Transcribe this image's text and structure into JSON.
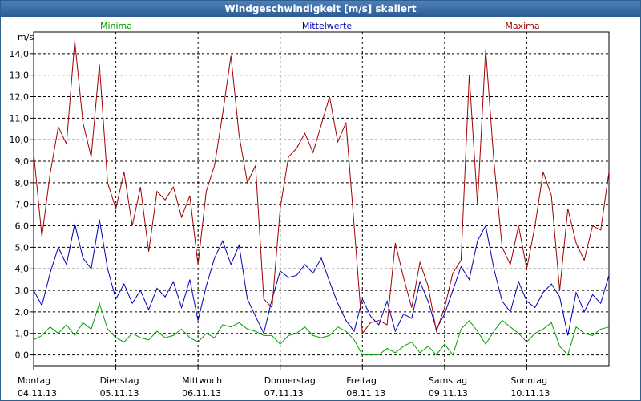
{
  "window": {
    "title": "Windgeschwindigkeit [m/s] skaliert"
  },
  "chart_data": {
    "type": "line",
    "title": "Windgeschwindigkeit [m/s] skaliert",
    "ylabel": "m/s",
    "ylim": [
      -0.5,
      15.0
    ],
    "yticks": [
      0,
      1,
      2,
      3,
      4,
      5,
      6,
      7,
      8,
      9,
      10,
      11,
      12,
      13,
      14
    ],
    "ytick_labels": [
      "0,0",
      "1,0",
      "2,0",
      "3,0",
      "4,0",
      "5,0",
      "6,0",
      "7,0",
      "8,0",
      "9,0",
      "10,0",
      "11,0",
      "12,0",
      "13,0",
      "14,0"
    ],
    "xlim": [
      0,
      7
    ],
    "days": [
      {
        "name": "Montag",
        "date": "04.11.13"
      },
      {
        "name": "Dienstag",
        "date": "05.11.13"
      },
      {
        "name": "Mittwoch",
        "date": "06.11.13"
      },
      {
        "name": "Donnerstag",
        "date": "07.11.13"
      },
      {
        "name": "Freitag",
        "date": "08.11.13"
      },
      {
        "name": "Samstag",
        "date": "09.11.13"
      },
      {
        "name": "Sonntag",
        "date": "10.11.13"
      }
    ],
    "legend": [
      "Minima",
      "Mittelwerte",
      "Maxima"
    ],
    "series": [
      {
        "name": "Minima",
        "color": "#00a000",
        "x": [
          0,
          0.1,
          0.2,
          0.3,
          0.4,
          0.5,
          0.6,
          0.7,
          0.8,
          0.9,
          1.0,
          1.1,
          1.2,
          1.3,
          1.4,
          1.5,
          1.6,
          1.7,
          1.8,
          1.9,
          2.0,
          2.1,
          2.2,
          2.3,
          2.4,
          2.5,
          2.6,
          2.7,
          2.8,
          2.9,
          3.0,
          3.1,
          3.2,
          3.3,
          3.4,
          3.5,
          3.6,
          3.7,
          3.8,
          3.9,
          4.0,
          4.1,
          4.2,
          4.3,
          4.4,
          4.5,
          4.6,
          4.7,
          4.8,
          4.9,
          5.0,
          5.1,
          5.2,
          5.3,
          5.4,
          5.5,
          5.6,
          5.7,
          5.8,
          5.9,
          6.0,
          6.1,
          6.2,
          6.3,
          6.4,
          6.5,
          6.6,
          6.7,
          6.8,
          6.9,
          7.0
        ],
        "values": [
          0.7,
          0.9,
          1.3,
          1.0,
          1.4,
          0.9,
          1.5,
          1.2,
          2.4,
          1.2,
          0.8,
          0.6,
          1.0,
          0.8,
          0.7,
          1.1,
          0.8,
          0.9,
          1.2,
          0.8,
          0.6,
          1.0,
          0.8,
          1.4,
          1.3,
          1.5,
          1.2,
          1.1,
          0.9,
          0.9,
          0.5,
          0.9,
          1.0,
          1.3,
          0.9,
          0.8,
          0.9,
          1.3,
          1.1,
          0.7,
          0.0,
          0.0,
          0.0,
          0.3,
          0.1,
          0.4,
          0.6,
          0.1,
          0.4,
          0.0,
          0.5,
          0.0,
          1.2,
          1.6,
          1.1,
          0.5,
          1.1,
          1.6,
          1.3,
          1.0,
          0.6,
          1.0,
          1.2,
          1.5,
          0.4,
          0.0,
          1.3,
          1.0,
          0.9,
          1.2,
          1.3
        ]
      },
      {
        "name": "Mittelwerte",
        "color": "#0000b0",
        "x": [
          0,
          0.1,
          0.2,
          0.3,
          0.4,
          0.5,
          0.6,
          0.7,
          0.8,
          0.9,
          1.0,
          1.1,
          1.2,
          1.3,
          1.4,
          1.5,
          1.6,
          1.7,
          1.8,
          1.9,
          2.0,
          2.1,
          2.2,
          2.3,
          2.4,
          2.5,
          2.6,
          2.7,
          2.8,
          2.9,
          3.0,
          3.1,
          3.2,
          3.3,
          3.4,
          3.5,
          3.6,
          3.7,
          3.8,
          3.9,
          4.0,
          4.1,
          4.2,
          4.3,
          4.4,
          4.5,
          4.6,
          4.7,
          4.8,
          4.9,
          5.0,
          5.1,
          5.2,
          5.3,
          5.4,
          5.5,
          5.6,
          5.7,
          5.8,
          5.9,
          6.0,
          6.1,
          6.2,
          6.3,
          6.4,
          6.5,
          6.6,
          6.7,
          6.8,
          6.9,
          7.0
        ],
        "values": [
          3.0,
          2.3,
          3.8,
          5.0,
          4.2,
          6.1,
          4.5,
          4.0,
          6.3,
          4.0,
          2.6,
          3.3,
          2.4,
          3.0,
          2.1,
          3.1,
          2.7,
          3.4,
          2.2,
          3.5,
          1.6,
          3.2,
          4.5,
          5.3,
          4.2,
          5.1,
          2.6,
          1.8,
          1.0,
          2.6,
          3.9,
          3.6,
          3.7,
          4.2,
          3.8,
          4.5,
          3.4,
          2.4,
          1.6,
          1.1,
          2.6,
          1.8,
          1.4,
          2.5,
          1.1,
          1.9,
          1.7,
          3.4,
          2.5,
          1.2,
          1.9,
          3.0,
          4.1,
          3.5,
          5.3,
          6.0,
          4.0,
          2.5,
          2.0,
          3.4,
          2.5,
          2.2,
          2.9,
          3.3,
          2.7,
          0.9,
          2.9,
          2.0,
          2.8,
          2.4,
          3.7
        ]
      },
      {
        "name": "Maxima",
        "color": "#a00000",
        "x": [
          0,
          0.1,
          0.2,
          0.3,
          0.4,
          0.5,
          0.6,
          0.7,
          0.8,
          0.9,
          1.0,
          1.1,
          1.2,
          1.3,
          1.4,
          1.5,
          1.6,
          1.7,
          1.8,
          1.9,
          2.0,
          2.1,
          2.2,
          2.3,
          2.4,
          2.5,
          2.6,
          2.7,
          2.8,
          2.9,
          3.0,
          3.1,
          3.2,
          3.3,
          3.4,
          3.5,
          3.6,
          3.7,
          3.8,
          3.9,
          4.0,
          4.1,
          4.2,
          4.3,
          4.4,
          4.5,
          4.6,
          4.7,
          4.8,
          4.9,
          5.0,
          5.1,
          5.2,
          5.3,
          5.4,
          5.5,
          5.6,
          5.7,
          5.8,
          5.9,
          6.0,
          6.1,
          6.2,
          6.3,
          6.4,
          6.5,
          6.6,
          6.7,
          6.8,
          6.9,
          7.0
        ],
        "values": [
          9.4,
          5.5,
          8.4,
          10.6,
          9.8,
          14.6,
          10.8,
          9.2,
          13.5,
          8.0,
          6.8,
          8.5,
          6.0,
          7.8,
          4.8,
          7.6,
          7.2,
          7.8,
          6.4,
          7.4,
          4.2,
          7.6,
          8.8,
          11.2,
          13.9,
          10.2,
          8.0,
          8.8,
          2.6,
          2.2,
          6.8,
          9.2,
          9.6,
          10.3,
          9.4,
          10.7,
          12.0,
          9.9,
          10.8,
          6.0,
          1.0,
          1.5,
          1.6,
          1.4,
          5.2,
          3.6,
          2.2,
          4.3,
          3.2,
          1.1,
          2.2,
          3.8,
          4.4,
          13.0,
          7.0,
          14.2,
          9.0,
          5.0,
          4.2,
          6.0,
          4.0,
          6.0,
          8.5,
          7.4,
          3.0,
          6.8,
          5.2,
          4.4,
          6.0,
          5.8,
          8.5
        ]
      }
    ]
  }
}
